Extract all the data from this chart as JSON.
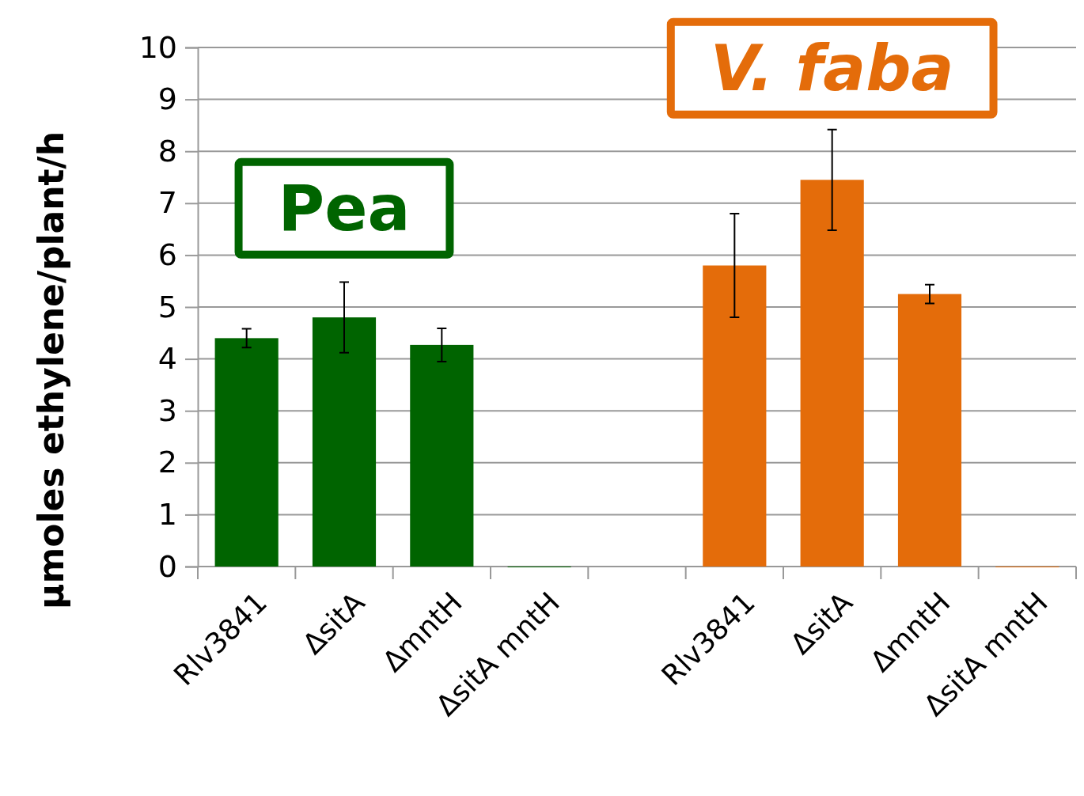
{
  "chart_data": {
    "type": "bar",
    "ylabel": "µmoles ethylene/plant/h",
    "categories": [
      "Rlv3841",
      "ΔsitA",
      "ΔmntH",
      "ΔsitA mntH",
      null,
      "Rlv3841",
      "ΔsitA",
      "ΔmntH",
      "ΔsitA mntH"
    ],
    "values": [
      4.4,
      4.8,
      4.27,
      0,
      null,
      5.8,
      7.45,
      5.25,
      0
    ],
    "errors": [
      0.18,
      0.68,
      0.32,
      null,
      null,
      1.0,
      0.97,
      0.18,
      null
    ],
    "colors": [
      "#006400",
      "#006400",
      "#006400",
      "#006400",
      null,
      "#e46c0a",
      "#e46c0a",
      "#e46c0a",
      "#e46c0a"
    ],
    "ylim": [
      0,
      10
    ],
    "yticks": [
      0,
      1,
      2,
      3,
      4,
      5,
      6,
      7,
      8,
      9,
      10
    ],
    "grid": "y",
    "annotations": [
      "Pea",
      "V. faba"
    ]
  }
}
